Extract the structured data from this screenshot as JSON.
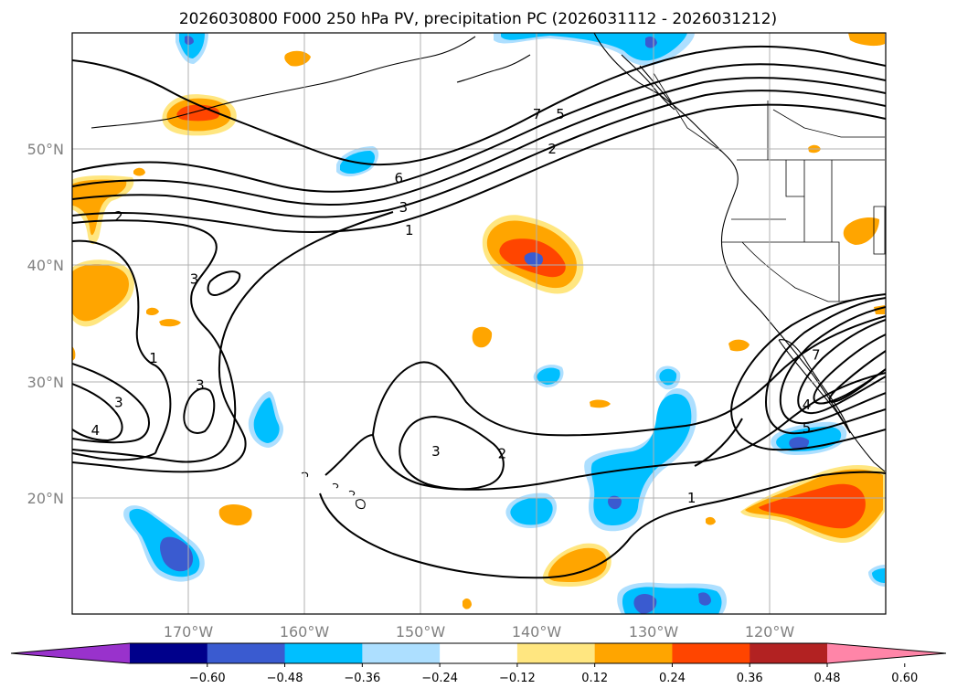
{
  "title": "2026030800 F000 250 hPa PV, precipitation PC (2026031112 - 2026031212)",
  "map": {
    "lon_range": [
      -180,
      -110
    ],
    "lat_range": [
      10,
      60
    ],
    "lon_ticks": [
      -170,
      -160,
      -150,
      -140,
      -130,
      -120
    ],
    "lon_tick_labels": [
      "170°W",
      "160°W",
      "150°W",
      "140°W",
      "130°W",
      "120°W"
    ],
    "lat_ticks": [
      20,
      30,
      40,
      50
    ],
    "lat_tick_labels": [
      "20°N",
      "30°N",
      "40°N",
      "50°N"
    ],
    "grid": true
  },
  "contour_labels": [
    {
      "text": "7",
      "lon": -140.0,
      "lat": 53.0
    },
    {
      "text": "5",
      "lon": -138.0,
      "lat": 53.0
    },
    {
      "text": "2",
      "lon": -138.7,
      "lat": 50.0
    },
    {
      "text": "6",
      "lon": -151.9,
      "lat": 47.5
    },
    {
      "text": "3",
      "lon": -151.5,
      "lat": 45.0
    },
    {
      "text": "1",
      "lon": -151.0,
      "lat": 43.0
    },
    {
      "text": "2",
      "lon": -176.0,
      "lat": 44.2
    },
    {
      "text": "3",
      "lon": -169.5,
      "lat": 38.8
    },
    {
      "text": "1",
      "lon": -173.0,
      "lat": 32.0
    },
    {
      "text": "3",
      "lon": -169.0,
      "lat": 29.7
    },
    {
      "text": "3",
      "lon": -176.0,
      "lat": 28.2
    },
    {
      "text": "4",
      "lon": -178.0,
      "lat": 25.8
    },
    {
      "text": "3",
      "lon": -148.7,
      "lat": 24.0
    },
    {
      "text": "2",
      "lon": -143.0,
      "lat": 23.8
    },
    {
      "text": "1",
      "lon": -126.7,
      "lat": 20.0
    },
    {
      "text": "7",
      "lon": -116.0,
      "lat": 32.3
    },
    {
      "text": "4",
      "lon": -116.8,
      "lat": 28.0
    },
    {
      "text": "5",
      "lon": -116.8,
      "lat": 26.0
    }
  ],
  "precip_anomalies": [
    {
      "sign": "positive",
      "lon": -170.0,
      "lat": 53.0,
      "peak": 0.36
    },
    {
      "sign": "positive",
      "lon": -140.0,
      "lat": 40.5,
      "peak": 0.48
    },
    {
      "sign": "positive",
      "lon": -178.0,
      "lat": 38.0,
      "peak": 0.24
    },
    {
      "sign": "positive",
      "lon": -117.0,
      "lat": 19.3,
      "peak": 0.36
    },
    {
      "sign": "positive",
      "lon": -137.7,
      "lat": 14.2,
      "peak": 0.24
    },
    {
      "sign": "negative",
      "lon": -132.0,
      "lat": 21.5,
      "peak": -0.36
    },
    {
      "sign": "negative",
      "lon": -131.0,
      "lat": 28.0,
      "peak": -0.36
    },
    {
      "sign": "negative",
      "lon": -172.0,
      "lat": 15.0,
      "peak": -0.48
    },
    {
      "sign": "negative",
      "lon": -129.5,
      "lat": 11.3,
      "peak": -0.48
    },
    {
      "sign": "negative",
      "lon": -116.5,
      "lat": 24.5,
      "peak": -0.48
    }
  ],
  "colorbar": {
    "colors": [
      "#9932CC",
      "#00008B",
      "#3A5BD0",
      "#00BFFF",
      "#ADDFFF",
      "#FFFFFF",
      "#FFE680",
      "#FFA500",
      "#FF4500",
      "#B22222",
      "#FF85A8"
    ],
    "tick_labels": [
      "−0.60",
      "−0.48",
      "−0.36",
      "−0.24",
      "−0.12",
      "0.12",
      "0.24",
      "0.36",
      "0.48",
      "0.60"
    ]
  }
}
